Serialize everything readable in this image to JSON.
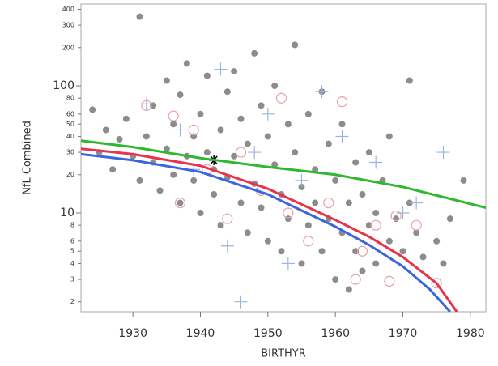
{
  "chart_data": {
    "type": "scatter",
    "x_label": "BIRTHYR",
    "y_label": "NfL Combined",
    "xlim": [
      1922.3,
      1982.3
    ],
    "xticks": [
      1930,
      1940,
      1950,
      1960,
      1970,
      1980
    ],
    "ylim": [
      1.67,
      440
    ],
    "yscale": "log",
    "yticks": [
      2,
      3,
      4,
      5,
      6,
      8,
      10,
      20,
      30,
      40,
      50,
      60,
      80,
      100,
      200,
      300,
      400
    ],
    "series": [
      {
        "marker": "circle",
        "color": "#8c8c8c",
        "x": [
          1924,
          1925,
          1926,
          1927,
          1928,
          1929,
          1930,
          1931,
          1931,
          1932,
          1933,
          1933,
          1934,
          1935,
          1935,
          1936,
          1936,
          1937,
          1937,
          1938,
          1938,
          1939,
          1939,
          1940,
          1940,
          1941,
          1941,
          1942,
          1942,
          1943,
          1943,
          1944,
          1944,
          1945,
          1945,
          1946,
          1946,
          1947,
          1947,
          1948,
          1948,
          1949,
          1949,
          1950,
          1950,
          1951,
          1951,
          1952,
          1952,
          1953,
          1953,
          1954,
          1954,
          1955,
          1955,
          1956,
          1956,
          1957,
          1957,
          1958,
          1958,
          1959,
          1959,
          1960,
          1960,
          1961,
          1961,
          1962,
          1962,
          1963,
          1963,
          1964,
          1964,
          1965,
          1965,
          1966,
          1966,
          1967,
          1968,
          1968,
          1969,
          1970,
          1971,
          1971,
          1972,
          1973,
          1975,
          1976,
          1977,
          1979
        ],
        "values": [
          65,
          30,
          45,
          22,
          38,
          55,
          28,
          350,
          18,
          40,
          70,
          25,
          15,
          110,
          32,
          50,
          20,
          12,
          85,
          28,
          150,
          40,
          18,
          60,
          10,
          120,
          30,
          22,
          14,
          45,
          8,
          90,
          19,
          130,
          28,
          12,
          55,
          35,
          7,
          180,
          17,
          70,
          11,
          40,
          6,
          24,
          100,
          14,
          5,
          50,
          9,
          30,
          210,
          16,
          4,
          60,
          8,
          22,
          12,
          90,
          5,
          35,
          9,
          18,
          3,
          50,
          7,
          12,
          2.5,
          25,
          5,
          14,
          3.5,
          30,
          8,
          10,
          4,
          18,
          6,
          40,
          9,
          5,
          110,
          12,
          7,
          4.5,
          6,
          4,
          9,
          18
        ]
      },
      {
        "marker": "open-circle",
        "color": "#e8a0a8",
        "x": [
          1932,
          1936,
          1937,
          1939,
          1941,
          1944,
          1946,
          1949,
          1952,
          1953,
          1956,
          1959,
          1961,
          1963,
          1964,
          1966,
          1968,
          1969,
          1972,
          1975
        ],
        "values": [
          70,
          58,
          12,
          45,
          22,
          9,
          30,
          15,
          80,
          10,
          6,
          12,
          75,
          3,
          5,
          8,
          2.9,
          9.5,
          8,
          2.8
        ]
      },
      {
        "marker": "plus",
        "color": "#9cb4e0",
        "x": [
          1932,
          1937,
          1939,
          1943,
          1944,
          1946,
          1948,
          1950,
          1953,
          1955,
          1958,
          1961,
          1966,
          1970,
          1972,
          1976
        ],
        "values": [
          72,
          45,
          22,
          135,
          5.5,
          2,
          30,
          60,
          4,
          18,
          90,
          40,
          25,
          10,
          12,
          30
        ]
      },
      {
        "marker": "asterisk",
        "color": "#000000",
        "x": [
          1942
        ],
        "values": [
          26
        ]
      },
      {
        "marker": "line",
        "color": "#2eb82e",
        "x": [
          1922.3,
          1930,
          1940,
          1950,
          1960,
          1970,
          1982.3
        ],
        "values": [
          37,
          33,
          27,
          23,
          20,
          16,
          11
        ]
      },
      {
        "marker": "line",
        "color": "#e8334a",
        "x": [
          1922.3,
          1930,
          1940,
          1950,
          1960,
          1965,
          1970,
          1975,
          1978
        ],
        "values": [
          32,
          29,
          23.5,
          15.5,
          8.8,
          6.5,
          4.5,
          2.8,
          1.67
        ]
      },
      {
        "marker": "line",
        "color": "#3a66e0",
        "x": [
          1922.3,
          1930,
          1940,
          1950,
          1960,
          1965,
          1970,
          1974,
          1977
        ],
        "values": [
          29,
          26,
          21,
          14,
          7.8,
          5.6,
          3.8,
          2.5,
          1.67
        ]
      }
    ]
  }
}
